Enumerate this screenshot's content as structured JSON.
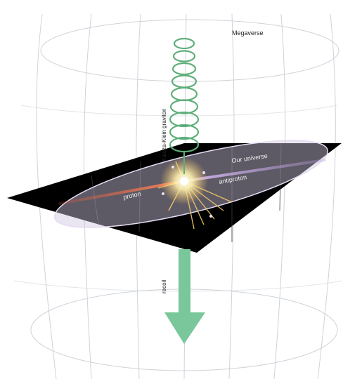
{
  "labels": {
    "megaverse": "Megaverse",
    "kaluza_klein_graviton": "Kaluza-Klein graviton",
    "our_universe": "Our universe",
    "proton": "proton",
    "antiproton": "antiproton",
    "recoil": "recoil"
  },
  "colors": {
    "background": "#ffffff",
    "grid_lines": "#cfd3d8",
    "brane_plane": "#000000",
    "brane_ellipse": "#d9d2e6",
    "proton_beam": "#e8593c",
    "antiproton_beam": "#b99ad8",
    "graviton_coil": "#5fae7a",
    "recoil_arrow": "#79c79a",
    "collision_flash": "#fff2b0",
    "label_text": "#222222",
    "label_text_on_dark": "#f2f2f2"
  },
  "icons": {
    "graviton": "spring-coil",
    "recoil": "down-arrow",
    "collision": "starburst"
  }
}
